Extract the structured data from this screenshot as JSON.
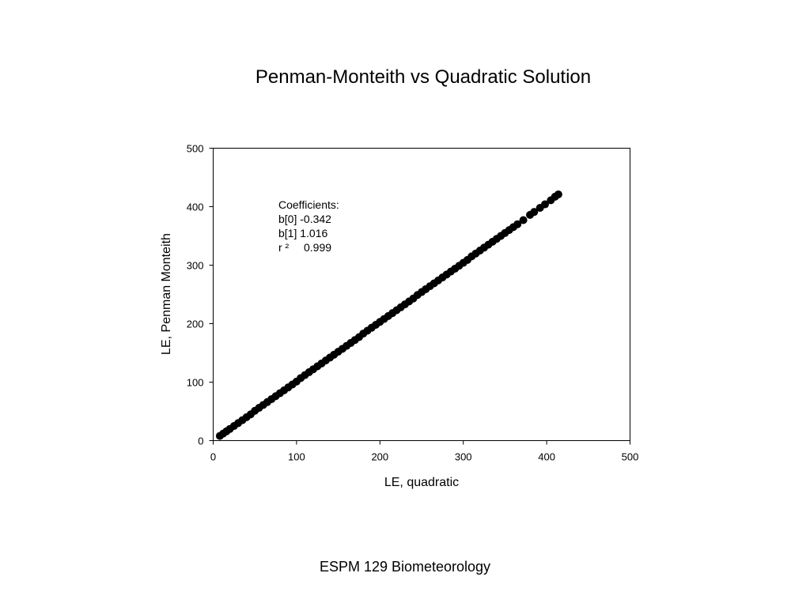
{
  "slide": {
    "footer": "ESPM 129 Biometeorology"
  },
  "chart_data": {
    "type": "scatter",
    "title": "Penman-Monteith vs Quadratic Solution",
    "xlabel": "LE, quadratic",
    "ylabel": "LE, Penman Monteith",
    "xlim": [
      0,
      500
    ],
    "ylim": [
      0,
      500
    ],
    "xticks": [
      "0",
      "100",
      "200",
      "300",
      "400",
      "500"
    ],
    "yticks": [
      "0",
      "100",
      "200",
      "300",
      "400",
      "500"
    ],
    "grid": false,
    "legend": "none",
    "marker_color": "#000000",
    "annotation": {
      "heading": "Coefficients:",
      "b0": "b[0] -0.342",
      "b1": "b[1] 1.016",
      "r2_label": "r ²",
      "r2_value": "0.999"
    },
    "fit": {
      "intercept": -0.342,
      "slope": 1.016,
      "r2": 0.999
    },
    "series": [
      {
        "x": [
          8,
          12,
          16,
          20,
          25,
          30,
          35,
          40,
          45,
          50,
          55,
          60,
          65,
          70,
          75,
          80,
          85,
          90,
          95,
          100,
          105,
          110,
          115,
          120,
          125,
          130,
          135,
          140,
          145,
          150,
          155,
          160,
          165,
          170,
          175,
          180,
          185,
          190,
          195,
          200,
          205,
          210,
          215,
          220,
          225,
          230,
          235,
          240,
          245,
          250,
          255,
          260,
          265,
          270,
          275,
          280,
          285,
          290,
          295,
          300,
          305,
          310,
          315,
          320,
          325,
          330,
          335,
          340,
          345,
          350,
          355,
          360,
          365,
          372,
          380,
          385,
          392,
          398,
          405,
          410,
          414
        ],
        "y": [
          8,
          12,
          16,
          20,
          25,
          30,
          35,
          40,
          45,
          51,
          56,
          61,
          66,
          71,
          76,
          81,
          86,
          91,
          96,
          101,
          107,
          112,
          117,
          122,
          127,
          132,
          137,
          142,
          147,
          152,
          157,
          162,
          167,
          172,
          177,
          183,
          188,
          193,
          198,
          203,
          208,
          213,
          218,
          223,
          228,
          233,
          238,
          243,
          249,
          254,
          259,
          264,
          269,
          274,
          279,
          284,
          289,
          294,
          299,
          304,
          309,
          315,
          320,
          325,
          330,
          335,
          340,
          345,
          350,
          355,
          360,
          365,
          370,
          377,
          386,
          391,
          398,
          404,
          411,
          417,
          421
        ]
      }
    ]
  }
}
